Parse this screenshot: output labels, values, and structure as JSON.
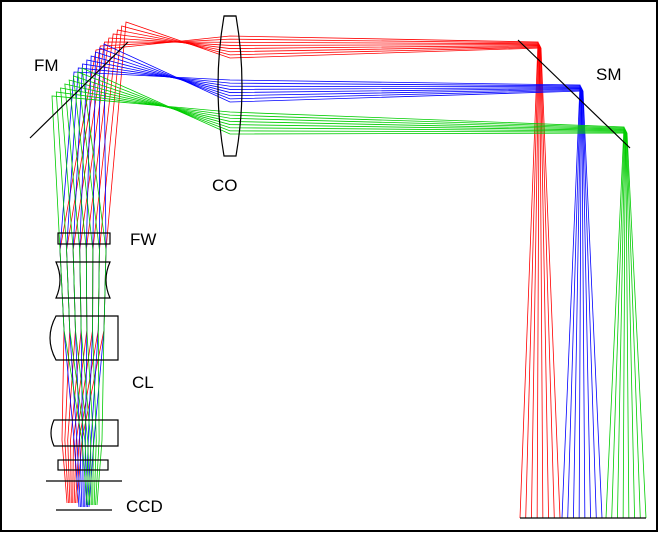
{
  "labels": {
    "fm": "FM",
    "sm": "SM",
    "co": "CO",
    "fw": "FW",
    "cl": "CL",
    "ccd": "CCD"
  },
  "colors": {
    "red_beam": "#ff0000",
    "blue_beam": "#0000ff",
    "green_beam": "#00cc00",
    "outline": "#000000",
    "background": "#ffffff"
  }
}
